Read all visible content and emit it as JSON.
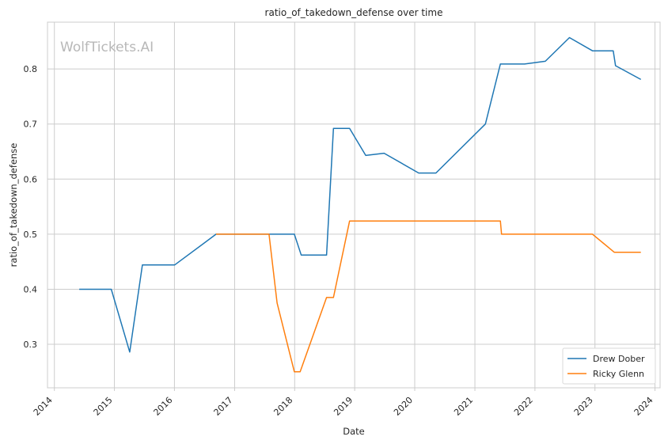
{
  "chart_data": {
    "type": "line",
    "title": "ratio_of_takedown_defense over time",
    "xlabel": "Date",
    "ylabel": "ratio_of_takedown_defense",
    "watermark": "WolfTickets.AI",
    "x_ticks": [
      "2014",
      "2015",
      "2016",
      "2017",
      "2018",
      "2019",
      "2020",
      "2021",
      "2022",
      "2023",
      "2024"
    ],
    "y_ticks": [
      "0.3",
      "0.4",
      "0.5",
      "0.6",
      "0.7",
      "0.8"
    ],
    "xlim": [
      "2013-11-20",
      "2024-02-01"
    ],
    "ylim": [
      0.221,
      0.885
    ],
    "grid": true,
    "legend_position": "bottom-right",
    "series": [
      {
        "name": "Drew Dober",
        "color": "#1f77b4",
        "points": [
          [
            "2014-06-01",
            0.4
          ],
          [
            "2014-12-13",
            0.4
          ],
          [
            "2015-04-04",
            0.286
          ],
          [
            "2015-06-20",
            0.444
          ],
          [
            "2016-01-02",
            0.444
          ],
          [
            "2016-09-10",
            0.5
          ],
          [
            "2017-07-29",
            0.5
          ],
          [
            "2017-12-30",
            0.5
          ],
          [
            "2018-02-10",
            0.462
          ],
          [
            "2018-07-14",
            0.462
          ],
          [
            "2018-08-25",
            0.692
          ],
          [
            "2018-12-01",
            0.692
          ],
          [
            "2019-03-09",
            0.643
          ],
          [
            "2019-06-29",
            0.647
          ],
          [
            "2020-01-25",
            0.611
          ],
          [
            "2020-05-09",
            0.611
          ],
          [
            "2021-03-06",
            0.7
          ],
          [
            "2021-06-05",
            0.809
          ],
          [
            "2021-10-30",
            0.809
          ],
          [
            "2022-03-05",
            0.814
          ],
          [
            "2022-07-30",
            0.857
          ],
          [
            "2022-12-17",
            0.833
          ],
          [
            "2023-04-22",
            0.833
          ],
          [
            "2023-05-06",
            0.806
          ],
          [
            "2023-10-07",
            0.781
          ]
        ]
      },
      {
        "name": "Ricky Glenn",
        "color": "#ff7f0e",
        "points": [
          [
            "2016-09-10",
            0.5
          ],
          [
            "2017-07-29",
            0.5
          ],
          [
            "2017-09-16",
            0.375
          ],
          [
            "2017-12-30",
            0.25
          ],
          [
            "2018-02-03",
            0.25
          ],
          [
            "2018-07-14",
            0.385
          ],
          [
            "2018-08-25",
            0.385
          ],
          [
            "2018-12-01",
            0.524
          ],
          [
            "2021-06-05",
            0.524
          ],
          [
            "2021-06-12",
            0.5
          ],
          [
            "2022-12-17",
            0.5
          ],
          [
            "2023-04-29",
            0.467
          ],
          [
            "2023-10-07",
            0.467
          ]
        ]
      }
    ]
  }
}
